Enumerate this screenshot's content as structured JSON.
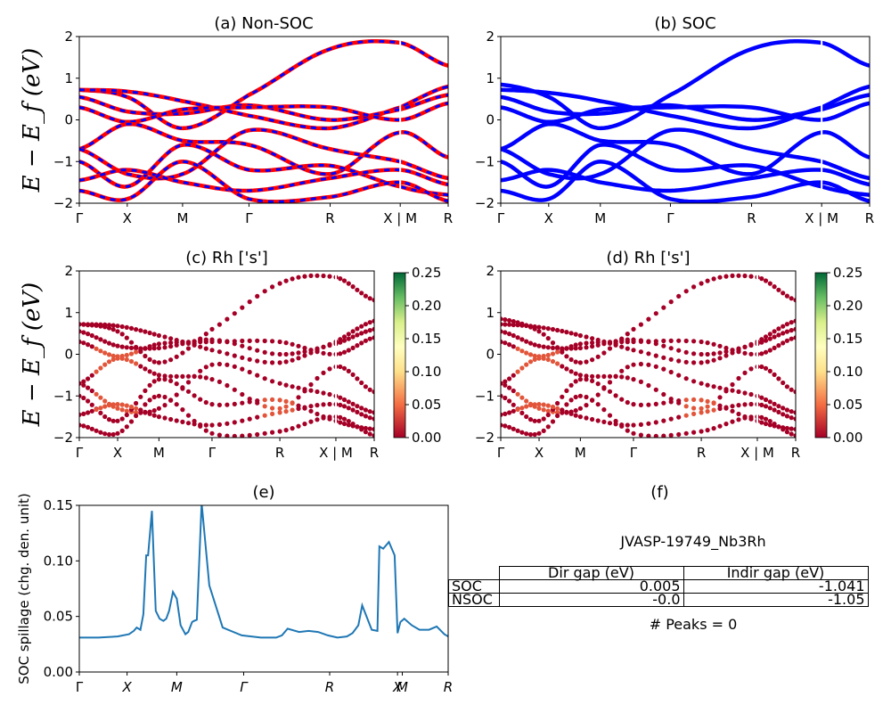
{
  "chart_data": [
    {
      "panel": "a",
      "type": "line",
      "title": "(a) Non-SOC",
      "ylabel": "E − E_f (eV)",
      "ylim": [
        -2,
        2
      ],
      "yticks": [
        "2",
        "1",
        "0",
        "−1",
        "−2"
      ],
      "kpath": [
        "Γ",
        "X",
        "M",
        "Γ",
        "R",
        "X | M",
        "R"
      ],
      "series_colors": [
        "#ff0000",
        "#0000ff"
      ],
      "bands": [
        [
          0.72,
          0.55,
          -0.2,
          0.6,
          1.7,
          1.85,
          1.3
        ],
        [
          0.72,
          0.68,
          0.45,
          0.1,
          -0.2,
          0.3,
          0.8
        ],
        [
          0.55,
          0.2,
          0.15,
          0.35,
          0.0,
          0.25,
          0.6
        ],
        [
          0.3,
          -0.05,
          0.25,
          0.3,
          0.3,
          0.0,
          0.4
        ],
        [
          -0.7,
          -0.1,
          -0.5,
          -0.6,
          -1.3,
          -0.3,
          -0.9
        ],
        [
          -0.7,
          -1.3,
          -1.3,
          -0.25,
          -0.7,
          -1.0,
          -1.4
        ],
        [
          -1.0,
          -1.6,
          -0.6,
          -1.2,
          -1.1,
          -1.6,
          -1.8
        ],
        [
          -1.45,
          -1.2,
          -1.5,
          -1.7,
          -1.4,
          -1.2,
          -1.55
        ],
        [
          -1.7,
          -1.9,
          -1.0,
          -1.9,
          -1.85,
          -1.5,
          -1.95
        ]
      ]
    },
    {
      "panel": "b",
      "type": "line",
      "title": "(b) SOC",
      "ylim": [
        -2,
        2
      ],
      "yticks": [
        "2",
        "1",
        "0",
        "−1",
        "−2"
      ],
      "kpath": [
        "Γ",
        "X",
        "M",
        "Γ",
        "R",
        "X | M",
        "R"
      ],
      "series_colors": [
        "#0000ff"
      ],
      "bands": [
        [
          0.85,
          0.55,
          -0.2,
          0.6,
          1.7,
          1.85,
          1.3
        ],
        [
          0.72,
          0.65,
          0.45,
          0.1,
          -0.2,
          0.3,
          0.8
        ],
        [
          0.55,
          0.2,
          0.15,
          0.35,
          0.0,
          0.25,
          0.6
        ],
        [
          0.3,
          -0.05,
          0.25,
          0.3,
          0.3,
          0.0,
          0.4
        ],
        [
          -0.7,
          -0.1,
          -0.5,
          -0.6,
          -1.3,
          -0.3,
          -0.9
        ],
        [
          -0.7,
          -1.3,
          -1.3,
          -0.25,
          -0.7,
          -1.0,
          -1.4
        ],
        [
          -1.0,
          -1.6,
          -0.6,
          -1.2,
          -1.1,
          -1.6,
          -1.8
        ],
        [
          -1.45,
          -1.2,
          -1.5,
          -1.7,
          -1.4,
          -1.2,
          -1.55
        ],
        [
          -1.7,
          -1.9,
          -1.0,
          -1.9,
          -1.85,
          -1.5,
          -1.95
        ]
      ]
    },
    {
      "panel": "c",
      "type": "scatter",
      "title": "(c)  Rh ['s']",
      "ylabel": "E − E_f (eV)",
      "ylim": [
        -2,
        2
      ],
      "yticks": [
        "2",
        "1",
        "0",
        "−1",
        "−2"
      ],
      "kpath": [
        "Γ",
        "X",
        "M",
        "Γ",
        "R",
        "X | M",
        "R"
      ],
      "colorbar": {
        "colormap": "RdYlGn",
        "range": [
          0.0,
          0.25
        ],
        "ticks": [
          "0.25",
          "0.20",
          "0.15",
          "0.10",
          "0.05",
          "0.00"
        ]
      }
    },
    {
      "panel": "d",
      "type": "scatter",
      "title": "(d) Rh ['s']",
      "ylim": [
        -2,
        2
      ],
      "yticks": [
        "2",
        "1",
        "0",
        "−1",
        "−2"
      ],
      "kpath": [
        "Γ",
        "X",
        "M",
        "Γ",
        "R",
        "X | M",
        "R"
      ],
      "colorbar": {
        "colormap": "RdYlGn",
        "range": [
          0.0,
          0.25
        ],
        "ticks": [
          "0.25",
          "0.20",
          "0.15",
          "0.10",
          "0.05",
          "0.00"
        ]
      }
    },
    {
      "panel": "e",
      "type": "line",
      "title": "(e)",
      "ylabel": "SOC spillage (chg. den. unit)",
      "ylim": [
        0.0,
        0.15
      ],
      "yticks": [
        "0.15",
        "0.10",
        "0.05",
        "0.00"
      ],
      "kpath": [
        "Γ",
        "X",
        "M",
        "Γ",
        "R",
        "X",
        "M",
        "R"
      ],
      "series_color": "#1f77b4",
      "x": [
        0,
        1,
        2,
        2.6,
        2.85,
        3.0,
        3.2,
        3.35,
        3.5,
        3.6,
        3.8,
        4.0,
        4.2,
        4.4,
        4.55,
        4.7,
        4.9,
        5.1,
        5.3,
        5.55,
        5.7,
        5.9,
        6.0,
        6.15,
        6.4,
        6.8,
        7.5,
        8.5,
        9.5,
        10.3,
        10.6,
        10.9,
        11.5,
        12.0,
        12.5,
        13.0,
        13.5,
        14.0,
        14.3,
        14.6,
        14.8,
        15.3,
        15.6,
        15.7,
        15.9,
        16.2,
        16.5,
        16.65,
        16.8,
        17.0,
        17.4,
        17.8,
        18.3,
        18.7,
        19.1,
        19.3
      ],
      "values": [
        0.031,
        0.031,
        0.032,
        0.034,
        0.037,
        0.04,
        0.038,
        0.052,
        0.105,
        0.105,
        0.145,
        0.055,
        0.048,
        0.046,
        0.048,
        0.055,
        0.072,
        0.066,
        0.042,
        0.034,
        0.036,
        0.045,
        0.046,
        0.047,
        0.152,
        0.078,
        0.04,
        0.033,
        0.031,
        0.031,
        0.033,
        0.039,
        0.036,
        0.037,
        0.036,
        0.033,
        0.031,
        0.032,
        0.035,
        0.042,
        0.06,
        0.038,
        0.037,
        0.113,
        0.111,
        0.117,
        0.105,
        0.035,
        0.045,
        0.048,
        0.042,
        0.038,
        0.038,
        0.041,
        0.034,
        0.032
      ],
      "tick_x": [
        0,
        1,
        2,
        3,
        5,
        7,
        8,
        9
      ]
    }
  ],
  "panel_f": {
    "title": "(f)",
    "material": "JVASP-19749_Nb3Rh",
    "table": {
      "headers": [
        "Dir gap (eV)",
        "Indir gap (eV)"
      ],
      "rows": [
        {
          "label": "SOC",
          "dir": "0.005",
          "indir": "-1.041"
        },
        {
          "label": "NSOC",
          "dir": "-0.0",
          "indir": "-1.05"
        }
      ]
    },
    "peaks": "# Peaks = 0"
  }
}
